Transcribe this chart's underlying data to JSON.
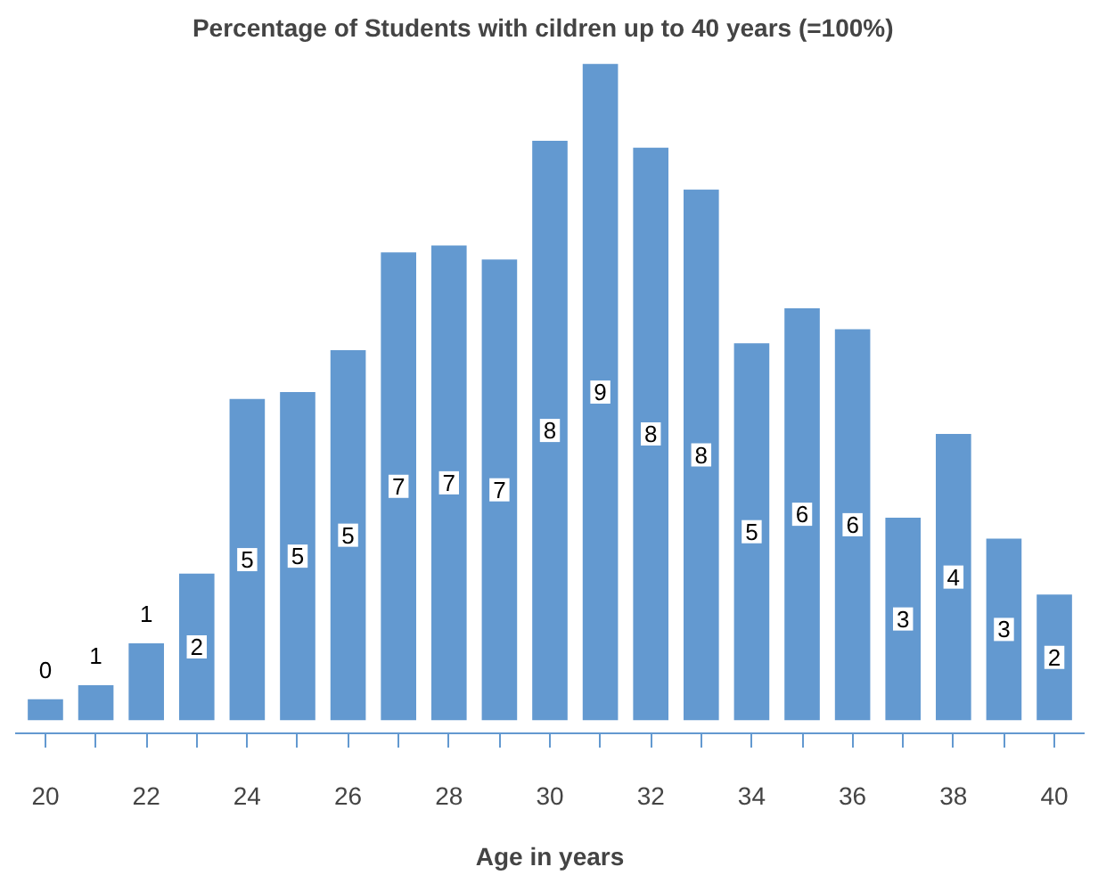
{
  "chart_data": {
    "type": "bar",
    "title": "Percentage  of  Students with cildren up to 40 years (=100%)",
    "xlabel": "Age in years",
    "categories": [
      "20",
      null,
      "22",
      null,
      "24",
      null,
      "26",
      null,
      "28",
      null,
      "30",
      null,
      "32",
      null,
      "34",
      null,
      "36",
      null,
      "38",
      null,
      "40"
    ],
    "tick_labels": "x",
    "color": "#6399d0",
    "values": [
      0.3,
      0.5,
      1.1,
      2.1,
      4.6,
      4.7,
      5.3,
      6.7,
      6.8,
      6.6,
      8.3,
      9.4,
      8.2,
      7.6,
      5.4,
      5.9,
      5.6,
      2.9,
      4.1,
      2.6,
      1.8
    ],
    "value_labels": [
      "0",
      "1",
      "1",
      "2",
      "5",
      "5",
      "5",
      "7",
      "7",
      "7",
      "8",
      "9",
      "8",
      "8",
      "5",
      "6",
      "6",
      "3",
      "4",
      "3",
      "2"
    ]
  }
}
